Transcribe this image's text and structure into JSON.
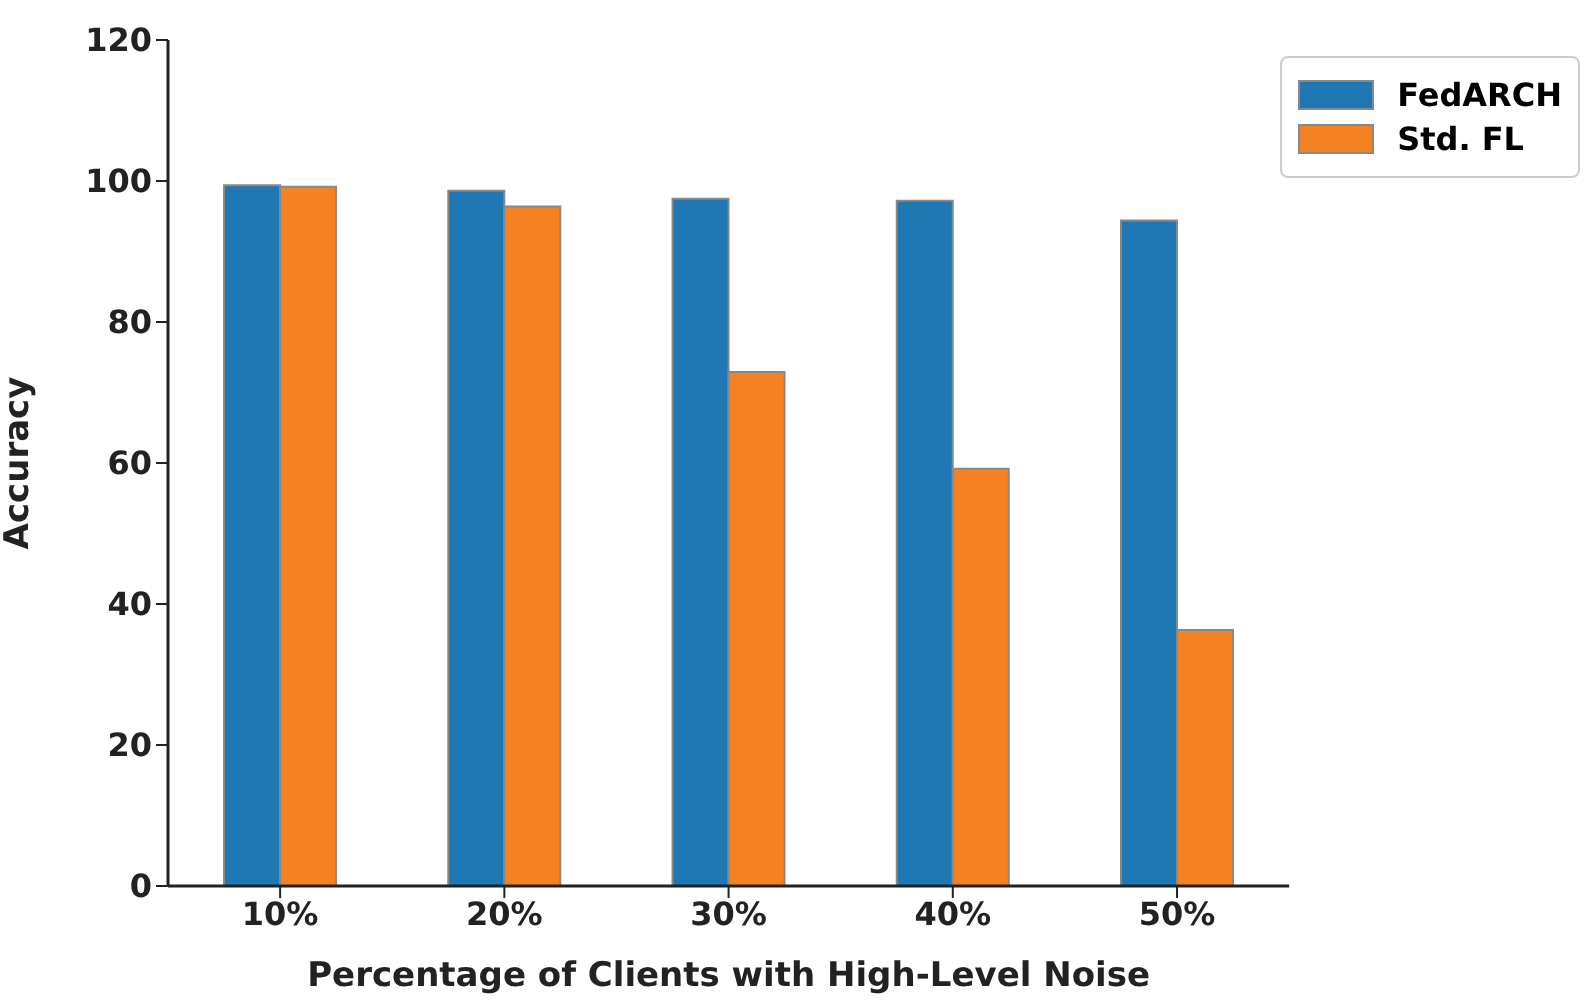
{
  "chart_data": {
    "type": "bar",
    "xlabel": "Percentage of Clients with High-Level Noise",
    "ylabel": "Accuracy",
    "categories": [
      "10%",
      "20%",
      "30%",
      "40%",
      "50%"
    ],
    "series": [
      {
        "name": "FedARCH",
        "color": "#1f77b4",
        "values": [
          99.4,
          98.6,
          97.5,
          97.2,
          94.4
        ]
      },
      {
        "name": "Std. FL",
        "color": "#f58220",
        "values": [
          99.2,
          96.4,
          72.9,
          59.2,
          36.3
        ]
      }
    ],
    "ylim": [
      0,
      120
    ],
    "yticks": [
      0,
      20,
      40,
      60,
      80,
      100,
      120
    ],
    "grid": false,
    "legend": "top right"
  }
}
